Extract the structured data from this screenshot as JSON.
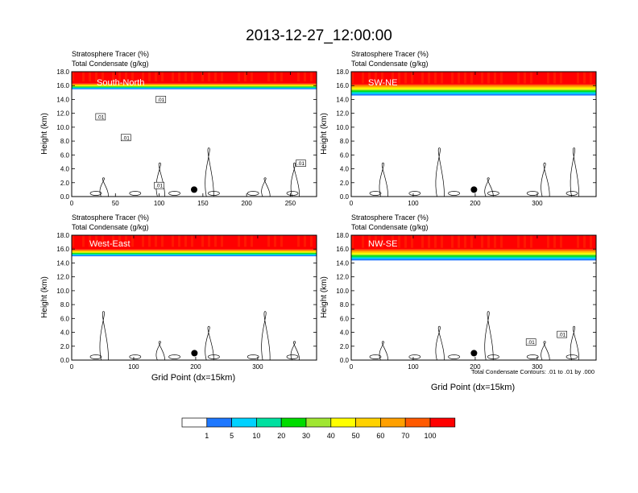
{
  "title": "2013-12-27_12:00:00",
  "colors": {
    "bands": [
      "#ffffff",
      "#1e78ff",
      "#00d2ff",
      "#00e0a0",
      "#00dc00",
      "#a0e632",
      "#ffff00",
      "#ffd200",
      "#ffa000",
      "#ff5a00",
      "#ff0000"
    ]
  },
  "colorbar": {
    "labels": [
      "1",
      "5",
      "10",
      "20",
      "30",
      "40",
      "50",
      "60",
      "70",
      "100"
    ]
  },
  "footnote": "Total Condensate Contours: .01 to .01 by .000",
  "chart_data": [
    {
      "type": "heatmap",
      "title": "South-North",
      "fill_label": "Stratosphere Tracer   (%)",
      "contour_label": "Total Condensate   (g/kg)",
      "ylabel": "Height (km)",
      "xlabel": "",
      "xlim": [
        0,
        280
      ],
      "ylim": [
        0,
        18
      ],
      "xticks": [
        "0",
        "50",
        "100",
        "150",
        "200",
        "250"
      ],
      "xtick_values": [
        0,
        50,
        100,
        150,
        200,
        250
      ],
      "yticks": [
        "0.0",
        "2.0",
        "4.0",
        "6.0",
        "8.0",
        "10.0",
        "12.0",
        "14.0",
        "16.0",
        "18.0"
      ],
      "tracer_base_km": 16.0,
      "gradient_depth_km": 0.5,
      "contour_labels": [
        {
          "text": ".01",
          "x": 33,
          "y": 11.5
        },
        {
          "text": ".01",
          "x": 62,
          "y": 8.5
        },
        {
          "text": ".01",
          "x": 102,
          "y": 14.0
        },
        {
          "text": ".01",
          "x": 262,
          "y": 4.8
        },
        {
          "text": ".01",
          "x": 100,
          "y": 1.6
        }
      ],
      "marker": {
        "x": 140,
        "y": 1.0
      }
    },
    {
      "type": "heatmap",
      "title": "SW-NE",
      "fill_label": "Stratosphere Tracer   (%)",
      "contour_label": "Total Condensate   (g/kg)",
      "ylabel": "Height (km)",
      "xlabel": "",
      "xlim": [
        0,
        395
      ],
      "ylim": [
        0,
        18
      ],
      "xticks": [
        "0",
        "100",
        "200",
        "300"
      ],
      "xtick_values": [
        0,
        100,
        200,
        300
      ],
      "yticks": [
        "0.0",
        "2.0",
        "4.0",
        "6.0",
        "8.0",
        "10.0",
        "12.0",
        "14.0",
        "16.0",
        "18.0"
      ],
      "tracer_base_km": 15.6,
      "gradient_depth_km": 1.0,
      "contour_labels": [],
      "marker": {
        "x": 198,
        "y": 1.0
      }
    },
    {
      "type": "heatmap",
      "title": "West-East",
      "fill_label": "Stratosphere Tracer   (%)",
      "contour_label": "Total Condensate   (g/kg)",
      "ylabel": "Height (km)",
      "xlabel": "Grid Point (dx=15km)",
      "xlim": [
        0,
        395
      ],
      "ylim": [
        0,
        18
      ],
      "xticks": [
        "0",
        "100",
        "200",
        "300"
      ],
      "xtick_values": [
        0,
        100,
        200,
        300
      ],
      "yticks": [
        "0.0",
        "2.0",
        "4.0",
        "6.0",
        "8.0",
        "10.0",
        "12.0",
        "14.0",
        "16.0",
        "18.0"
      ],
      "tracer_base_km": 15.6,
      "gradient_depth_km": 0.6,
      "contour_labels": [],
      "marker": {
        "x": 198,
        "y": 1.0
      }
    },
    {
      "type": "heatmap",
      "title": "NW-SE",
      "fill_label": "Stratosphere Tracer   (%)",
      "contour_label": "Total Condensate   (g/kg)",
      "ylabel": "Height (km)",
      "xlabel": "Grid Point (dx=15km)",
      "xlim": [
        0,
        395
      ],
      "ylim": [
        0,
        18
      ],
      "xticks": [
        "0",
        "100",
        "200",
        "300"
      ],
      "xtick_values": [
        0,
        100,
        200,
        300
      ],
      "yticks": [
        "0.0",
        "2.0",
        "4.0",
        "6.0",
        "8.0",
        "10.0",
        "12.0",
        "14.0",
        "16.0",
        "18.0"
      ],
      "tracer_base_km": 15.4,
      "gradient_depth_km": 1.0,
      "contour_labels": [
        {
          "text": ".01",
          "x": 290,
          "y": 2.6
        },
        {
          "text": ".01",
          "x": 340,
          "y": 3.7
        }
      ],
      "marker": {
        "x": 198,
        "y": 1.0
      }
    }
  ]
}
